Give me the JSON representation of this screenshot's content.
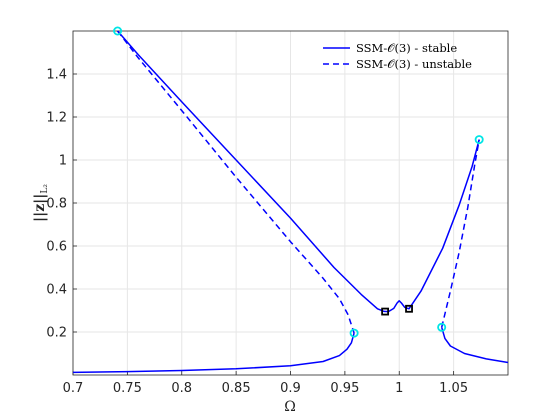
{
  "chart_data": {
    "type": "line",
    "title": "",
    "xlabel": "Ω",
    "ylabel": "||z||_{L2}",
    "ylabel_main": "||z||",
    "ylabel_sub": "L₂",
    "xlim": [
      0.7,
      1.1
    ],
    "ylim": [
      0.0,
      1.6
    ],
    "xticks": [
      0.7,
      0.75,
      0.8,
      0.85,
      0.9,
      0.95,
      1.0,
      1.05
    ],
    "xtick_labels": [
      "0.7",
      "0.75",
      "0.8",
      "0.85",
      "0.9",
      "0.95",
      "1",
      "1.05"
    ],
    "yticks": [
      0.2,
      0.4,
      0.6,
      0.8,
      1.0,
      1.2,
      1.4
    ],
    "ytick_labels": [
      "0.2",
      "0.4",
      "0.6",
      "0.8",
      "1",
      "1.2",
      "1.4"
    ],
    "grid": true,
    "legend_position": "top-right",
    "colors": {
      "curve": "#0000ff",
      "saddle_node_marker": "#00e5e5",
      "hopf_marker": "#000000",
      "grid": "#e6e6e6",
      "axis": "#262626"
    },
    "series": [
      {
        "name": "SSM-𝒪(3) - stable",
        "style": "solid",
        "segments": [
          [
            [
              0.7,
              0.012
            ],
            [
              0.75,
              0.016
            ],
            [
              0.8,
              0.021
            ],
            [
              0.85,
              0.029
            ],
            [
              0.9,
              0.043
            ],
            [
              0.93,
              0.063
            ],
            [
              0.945,
              0.09
            ],
            [
              0.952,
              0.12
            ],
            [
              0.956,
              0.15
            ],
            [
              0.9585,
              0.195
            ]
          ],
          [
            [
              0.741,
              1.6
            ],
            [
              0.76,
              1.49
            ],
            [
              0.8,
              1.27
            ],
            [
              0.85,
              1.0
            ],
            [
              0.9,
              0.73
            ],
            [
              0.94,
              0.5
            ],
            [
              0.965,
              0.375
            ],
            [
              0.98,
              0.308
            ],
            [
              0.986,
              0.296
            ],
            [
              0.99,
              0.295
            ],
            [
              0.995,
              0.31
            ],
            [
              0.998,
              0.335
            ],
            [
              1.0,
              0.345
            ],
            [
              1.002,
              0.335
            ],
            [
              1.005,
              0.315
            ],
            [
              1.009,
              0.308
            ],
            [
              1.02,
              0.39
            ],
            [
              1.04,
              0.59
            ],
            [
              1.055,
              0.79
            ],
            [
              1.067,
              0.97
            ],
            [
              1.0735,
              1.095
            ]
          ],
          [
            [
              1.039,
              0.222
            ],
            [
              1.042,
              0.17
            ],
            [
              1.047,
              0.135
            ],
            [
              1.06,
              0.1
            ],
            [
              1.08,
              0.075
            ],
            [
              1.1,
              0.058
            ]
          ]
        ]
      },
      {
        "name": "SSM-𝒪(3) - unstable",
        "style": "dashed",
        "segments": [
          [
            [
              0.741,
              1.6
            ],
            [
              0.76,
              1.475
            ],
            [
              0.8,
              1.23
            ],
            [
              0.85,
              0.92
            ],
            [
              0.9,
              0.62
            ],
            [
              0.93,
              0.45
            ],
            [
              0.945,
              0.355
            ],
            [
              0.953,
              0.28
            ],
            [
              0.9585,
              0.195
            ]
          ],
          [
            [
              1.039,
              0.222
            ],
            [
              1.047,
              0.39
            ],
            [
              1.055,
              0.57
            ],
            [
              1.063,
              0.78
            ],
            [
              1.0695,
              0.98
            ],
            [
              1.0735,
              1.095
            ]
          ]
        ]
      }
    ],
    "markers": [
      {
        "kind": "saddle-node",
        "x": 0.741,
        "y": 1.6
      },
      {
        "kind": "saddle-node",
        "x": 0.9585,
        "y": 0.195
      },
      {
        "kind": "saddle-node",
        "x": 1.039,
        "y": 0.222
      },
      {
        "kind": "saddle-node",
        "x": 1.0735,
        "y": 1.095
      },
      {
        "kind": "hopf",
        "x": 0.987,
        "y": 0.295
      },
      {
        "kind": "hopf",
        "x": 1.009,
        "y": 0.308
      }
    ]
  }
}
